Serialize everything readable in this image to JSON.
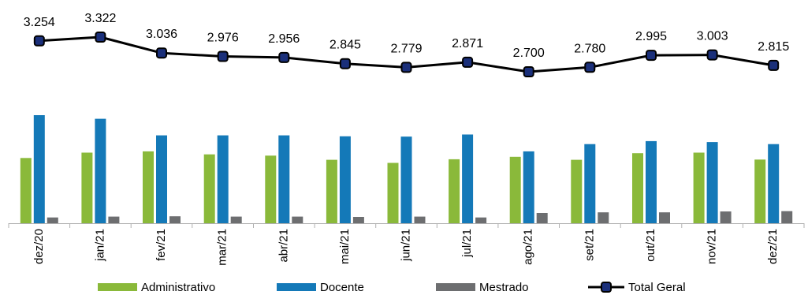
{
  "chart_data": {
    "type": "bar",
    "combo": "bar+line",
    "categories": [
      "dez/20",
      "jan/21",
      "fev/21",
      "mar/21",
      "abr/21",
      "mai/21",
      "jun/21",
      "jul/21",
      "ago/21",
      "set/21",
      "out/21",
      "nov/21",
      "dez/21"
    ],
    "series": [
      {
        "name": "Administrativo",
        "type": "bar",
        "color": "#8ab93a",
        "values": [
          1080,
          1170,
          1190,
          1140,
          1120,
          1050,
          1000,
          1060,
          1100,
          1050,
          1160,
          1170,
          1055
        ]
      },
      {
        "name": "Docente",
        "type": "bar",
        "color": "#1479b8",
        "values": [
          1790,
          1730,
          1455,
          1455,
          1455,
          1440,
          1435,
          1470,
          1190,
          1310,
          1360,
          1345,
          1310
        ]
      },
      {
        "name": "Mestrado",
        "type": "bar",
        "color": "#6d6e70",
        "values": [
          95,
          110,
          115,
          110,
          110,
          105,
          110,
          95,
          170,
          180,
          180,
          195,
          200
        ]
      },
      {
        "name": "Total Geral",
        "type": "line",
        "color": "#000000",
        "marker_color": "#1a2f7a",
        "values": [
          3254,
          3322,
          3036,
          2976,
          2956,
          2845,
          2779,
          2871,
          2700,
          2780,
          2995,
          3003,
          2815
        ],
        "labels": [
          "3.254",
          "3.322",
          "3.036",
          "2.976",
          "2.956",
          "2.845",
          "2.779",
          "2.871",
          "2.700",
          "2.780",
          "2.995",
          "3.003",
          "2.815"
        ]
      }
    ],
    "legend_position": "bottom",
    "grid": false,
    "y_axis_visible": false
  }
}
